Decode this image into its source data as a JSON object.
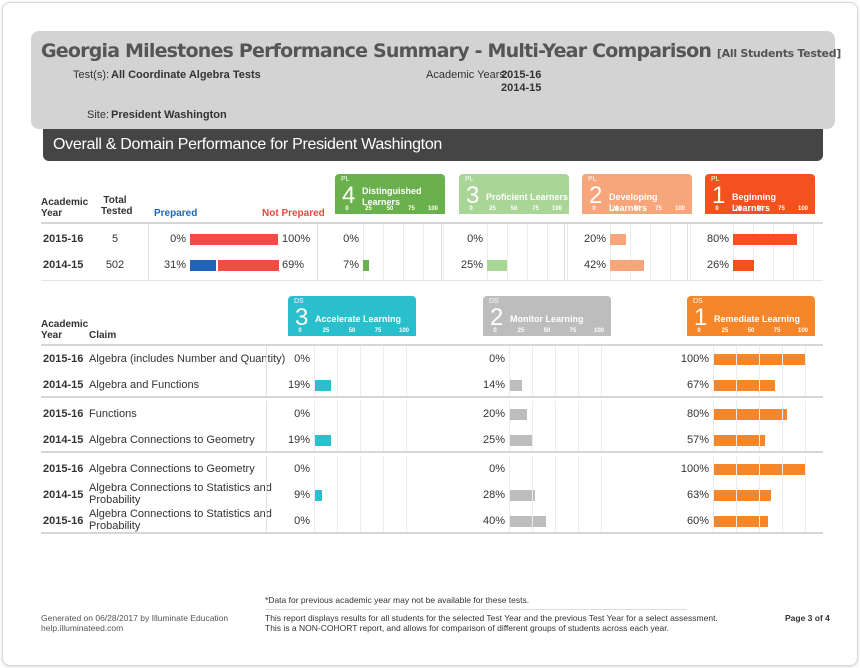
{
  "report": {
    "title": "Georgia Milestones Performance Summary - Multi-Year Comparison",
    "title_tag": "[All Students Tested]",
    "tests_label": "Test(s):",
    "tests_value": "All Coordinate Algebra Tests",
    "years_label": "Academic Years:",
    "years": [
      "2015-16",
      "2014-15"
    ],
    "site_label": "Site:",
    "site_value": "President Washington",
    "section_title": "Overall & Domain Performance for President Washington"
  },
  "overall": {
    "headers": {
      "academic_year": [
        "Academic",
        "Year"
      ],
      "total_tested": [
        "Total",
        "Tested"
      ],
      "prepared": "Prepared",
      "not_prepared": "Not Prepared"
    },
    "scale_ticks": [
      "0",
      "25",
      "50",
      "75",
      "100"
    ],
    "levels": [
      {
        "prefix": "PL",
        "num": "4",
        "name": [
          "Distinguished",
          "Learners"
        ],
        "color": "#6ab04c"
      },
      {
        "prefix": "PL",
        "num": "3",
        "name": [
          "Proficient Learners"
        ],
        "color": "#a9d697"
      },
      {
        "prefix": "PL",
        "num": "2",
        "name": [
          "Developing Learners"
        ],
        "color": "#f7a57a"
      },
      {
        "prefix": "PL",
        "num": "1",
        "name": [
          "Beginning Learners"
        ],
        "color": "#f4511e"
      }
    ],
    "rows": [
      {
        "year": "2015-16",
        "tested": "5",
        "prepared": 0,
        "prepared_label": "0%",
        "not_prepared": 100,
        "not_prepared_label": "100%",
        "pl": [
          {
            "v": 0,
            "label": "0%"
          },
          {
            "v": 0,
            "label": "0%"
          },
          {
            "v": 20,
            "label": "20%"
          },
          {
            "v": 80,
            "label": "80%"
          }
        ]
      },
      {
        "year": "2014-15",
        "tested": "502",
        "prepared": 31,
        "prepared_label": "31%",
        "not_prepared": 69,
        "not_prepared_label": "69%",
        "pl": [
          {
            "v": 7,
            "label": "7%"
          },
          {
            "v": 25,
            "label": "25%"
          },
          {
            "v": 42,
            "label": "42%"
          },
          {
            "v": 26,
            "label": "26%"
          }
        ]
      }
    ]
  },
  "domain": {
    "headers": {
      "academic_year": [
        "Academic",
        "Year"
      ],
      "claim": "Claim"
    },
    "scale_ticks": [
      "0",
      "25",
      "50",
      "75",
      "100"
    ],
    "levels": [
      {
        "prefix": "DS",
        "num": "3",
        "name": [
          "Accelerate Learning"
        ],
        "color": "#29bfcc"
      },
      {
        "prefix": "DS",
        "num": "2",
        "name": [
          "Monitor Learning"
        ],
        "color": "#bdbdbd"
      },
      {
        "prefix": "DS",
        "num": "1",
        "name": [
          "Remediate Learning"
        ],
        "color": "#f5872a"
      }
    ],
    "groups": [
      [
        {
          "year": "2015-16",
          "claim": [
            "Algebra (includes Number and Quantity)"
          ],
          "ds": [
            {
              "v": 0,
              "label": "0%"
            },
            {
              "v": 0,
              "label": "0%"
            },
            {
              "v": 100,
              "label": "100%"
            }
          ]
        },
        {
          "year": "2014-15",
          "claim": [
            "Algebra and Functions"
          ],
          "ds": [
            {
              "v": 19,
              "label": "19%"
            },
            {
              "v": 14,
              "label": "14%"
            },
            {
              "v": 67,
              "label": "67%"
            }
          ]
        }
      ],
      [
        {
          "year": "2015-16",
          "claim": [
            "Functions"
          ],
          "ds": [
            {
              "v": 0,
              "label": "0%"
            },
            {
              "v": 20,
              "label": "20%"
            },
            {
              "v": 80,
              "label": "80%"
            }
          ]
        },
        {
          "year": "2014-15",
          "claim": [
            "Algebra Connections to Geometry"
          ],
          "ds": [
            {
              "v": 19,
              "label": "19%"
            },
            {
              "v": 25,
              "label": "25%"
            },
            {
              "v": 57,
              "label": "57%"
            }
          ]
        }
      ],
      [
        {
          "year": "2015-16",
          "claim": [
            "Algebra Connections to Geometry"
          ],
          "ds": [
            {
              "v": 0,
              "label": "0%"
            },
            {
              "v": 0,
              "label": "0%"
            },
            {
              "v": 100,
              "label": "100%"
            }
          ]
        },
        {
          "year": "2014-15",
          "claim": [
            "Algebra Connections to Statistics and",
            "Probability"
          ],
          "ds": [
            {
              "v": 9,
              "label": "9%"
            },
            {
              "v": 28,
              "label": "28%"
            },
            {
              "v": 63,
              "label": "63%"
            }
          ]
        },
        {
          "year": "2015-16",
          "claim": [
            "Algebra Connections to Statistics and",
            "Probability"
          ],
          "ds": [
            {
              "v": 0,
              "label": "0%"
            },
            {
              "v": 40,
              "label": "40%"
            },
            {
              "v": 60,
              "label": "60%"
            }
          ]
        }
      ]
    ]
  },
  "footer": {
    "note": "*Data for previous academic year may not be available for these tests.",
    "generated": "Generated on 06/28/2017 by Illuminate Education",
    "site_url": "help.illuminateed.com",
    "desc1": "This report displays results for all students for the selected Test Year and the previous Test Year for a select assessment.",
    "desc2": "This is a NON-COHORT report, and allows for comparison of different groups of students across each year.",
    "page": "Page 3 of 4"
  }
}
